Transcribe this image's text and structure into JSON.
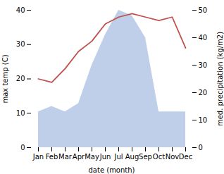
{
  "chart_data": {
    "type": "line",
    "xlabel": "date (month)",
    "ylabel": "max temp (C)",
    "y2label": "med. precipitation (kg/m2)",
    "categories": [
      "Jan",
      "Feb",
      "Mar",
      "Apr",
      "May",
      "Jun",
      "Jul",
      "Aug",
      "Sep",
      "Oct",
      "Nov",
      "Dec"
    ],
    "series": [
      {
        "type": "area",
        "axis": "y2",
        "color": "#bfcfea",
        "values": [
          13,
          15,
          13,
          16,
          30,
          41,
          50,
          48,
          40,
          13,
          13,
          13
        ]
      },
      {
        "type": "line",
        "color": "#c0504d",
        "values": [
          20,
          19,
          23,
          28,
          31,
          36,
          38,
          39,
          38,
          37,
          38,
          29
        ]
      }
    ],
    "ylim": [
      0,
      40
    ],
    "yticks": [
      0,
      10,
      20,
      30,
      40
    ],
    "y2lim": [
      0,
      50
    ],
    "y2ticks": [
      0,
      10,
      20,
      30,
      40,
      50
    ],
    "grid": false
  }
}
